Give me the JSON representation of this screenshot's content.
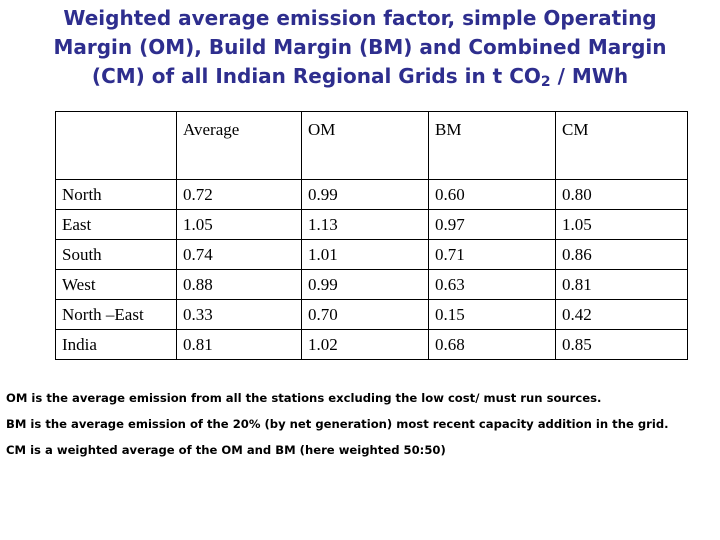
{
  "title": {
    "line1": "Weighted average emission factor, simple Operating",
    "line2": "Margin (OM), Build Margin (BM) and Combined Margin",
    "line3_prefix": "(CM) of all Indian Regional Grids in t CO",
    "line3_sub": "2",
    "line3_suffix": " / MWh"
  },
  "table": {
    "headers": [
      "",
      "Average",
      "OM",
      "BM",
      "CM"
    ],
    "rows": [
      [
        "North",
        "0.72",
        "0.99",
        "0.60",
        "0.80"
      ],
      [
        "East",
        "1.05",
        "1.13",
        "0.97",
        "1.05"
      ],
      [
        "South",
        "0.74",
        "1.01",
        "0.71",
        "0.86"
      ],
      [
        "West",
        "0.88",
        "0.99",
        "0.63",
        "0.81"
      ],
      [
        "North –East",
        "0.33",
        "0.70",
        "0.15",
        "0.42"
      ],
      [
        "India",
        "0.81",
        "1.02",
        "0.68",
        "0.85"
      ]
    ]
  },
  "notes": [
    "OM is the average emission from all the stations excluding the low cost/ must run sources.",
    "BM is the average emission of the 20% (by net generation) most recent capacity addition in the grid.",
    "CM is a weighted average of the OM and BM (here weighted 50:50)"
  ],
  "colors": {
    "title": "#2e2e8e"
  }
}
